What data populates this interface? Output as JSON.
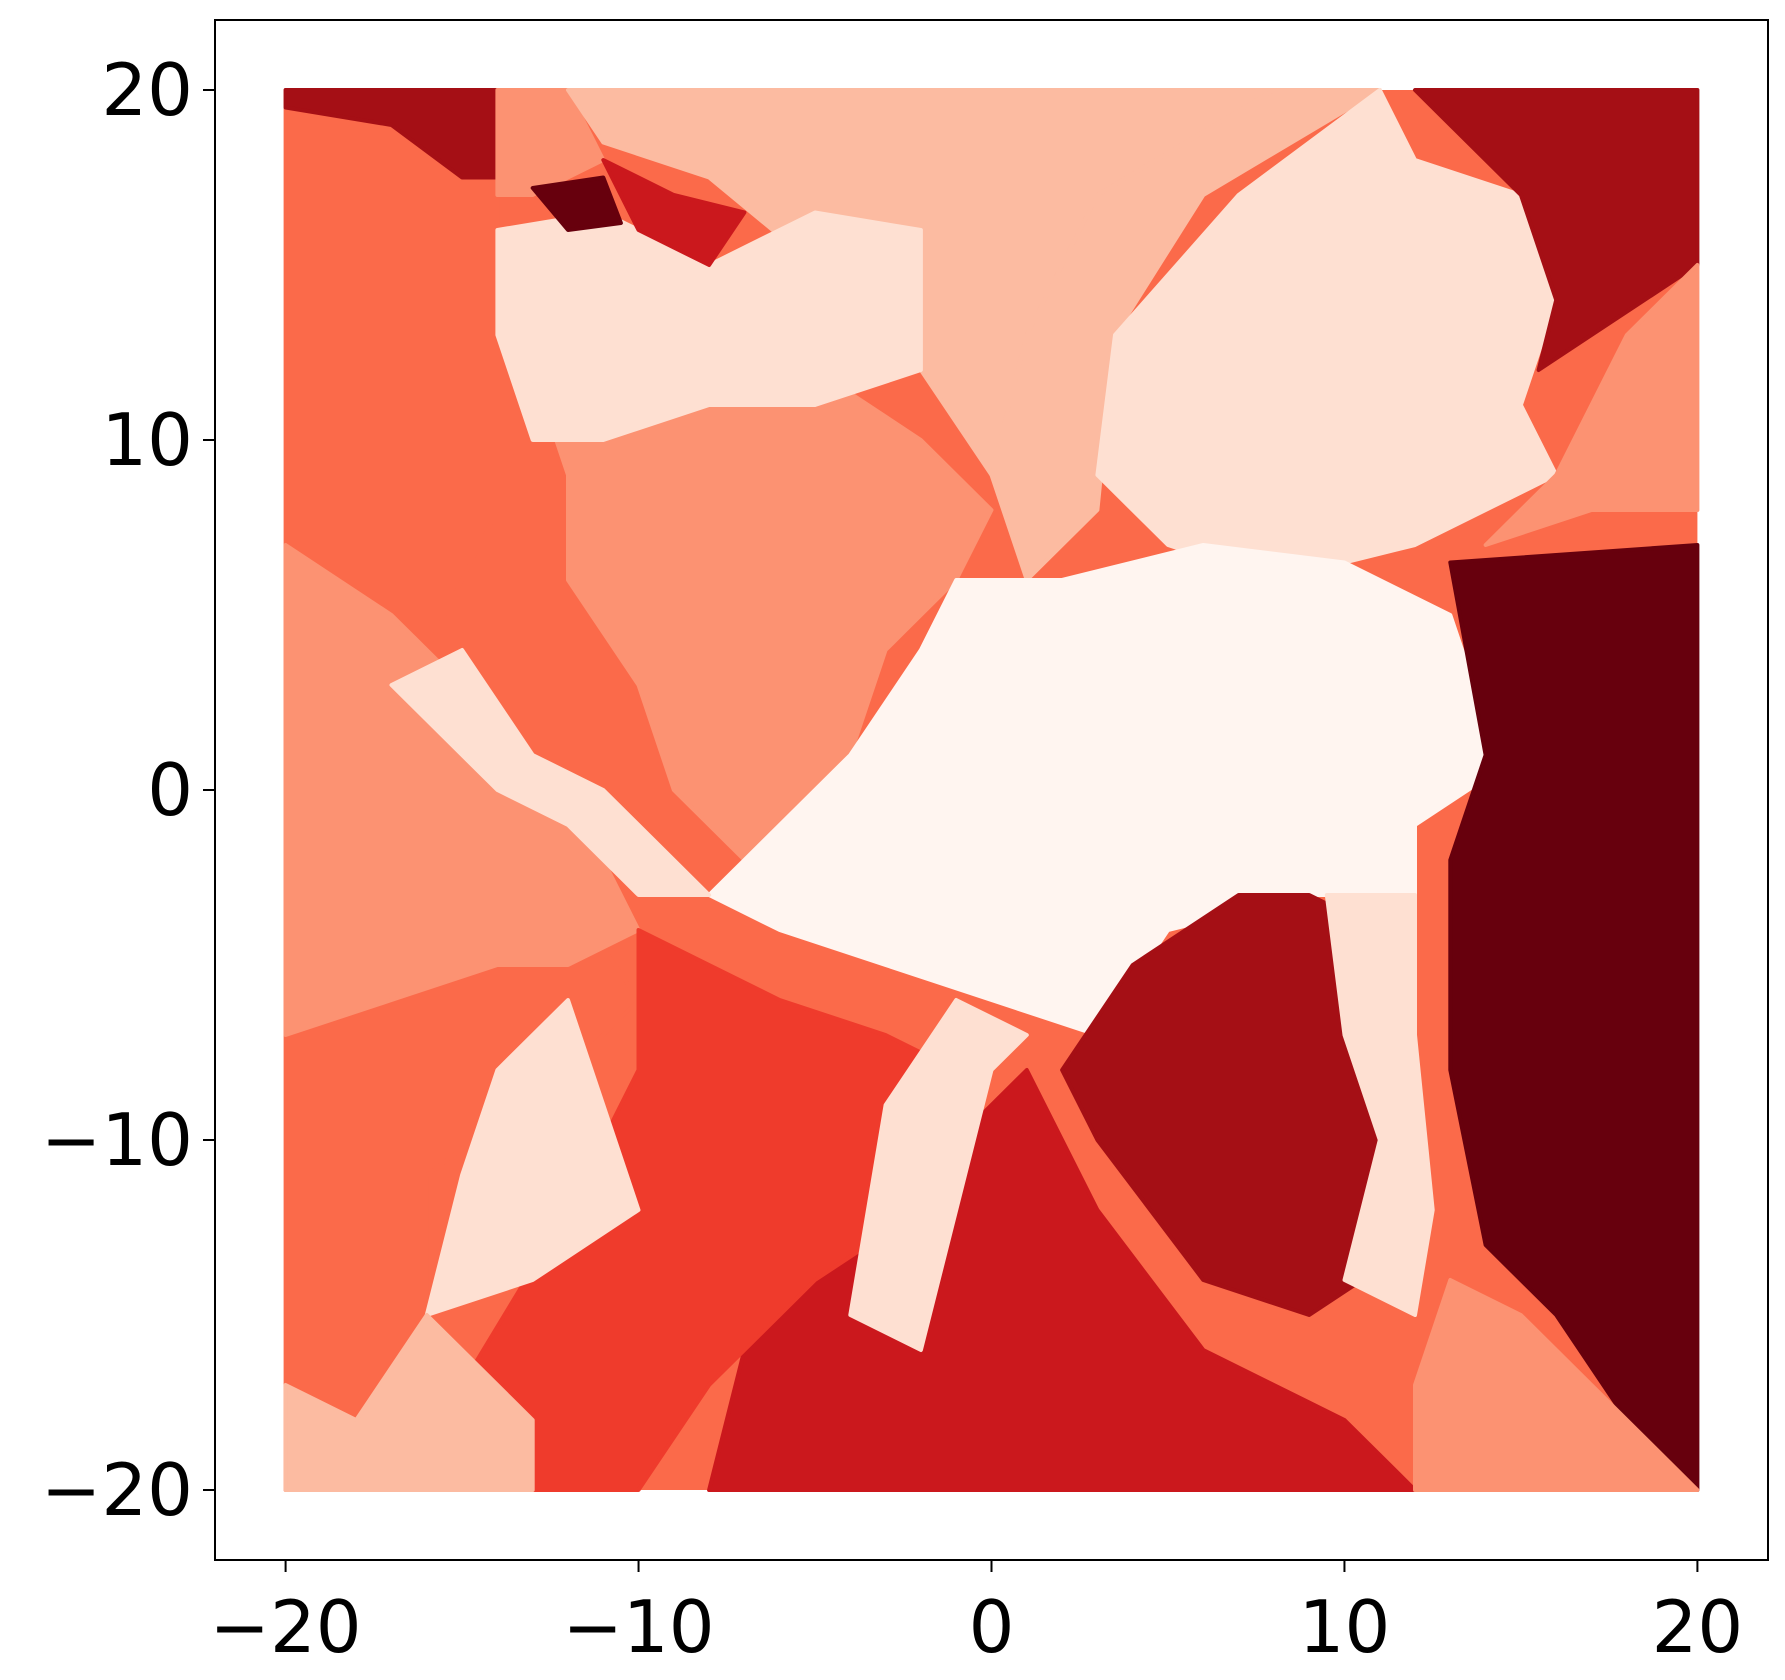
{
  "chart_data": {
    "type": "heatmap",
    "title": "",
    "xlabel": "",
    "ylabel": "",
    "xlim": [
      -22,
      22
    ],
    "ylim": [
      -22,
      22
    ],
    "grid_extent": [
      -20,
      20
    ],
    "grid": false,
    "legend": "none",
    "colormap": "Reds",
    "x_ticks": [
      -20,
      -10,
      0,
      10,
      20
    ],
    "y_ticks": [
      -20,
      -10,
      0,
      10,
      20
    ],
    "x_tick_labels": [
      "−20",
      "−10",
      "0",
      "10",
      "20"
    ],
    "y_tick_labels": [
      "−20",
      "−10",
      "0",
      "10",
      "20"
    ],
    "palette": [
      "#fff5f0",
      "#fee0d2",
      "#fcbba1",
      "#fc9272",
      "#fb6a4a",
      "#ef3b2c",
      "#cb181d",
      "#a50f15",
      "#67000d"
    ],
    "regions": [
      {
        "name": "left-orange",
        "level": 4,
        "points": [
          [
            -20,
            20
          ],
          [
            -20,
            -20
          ],
          [
            -16,
            -20
          ],
          [
            -16,
            -11
          ],
          [
            -12,
            -8
          ],
          [
            -10,
            -6
          ],
          [
            -12,
            -3
          ],
          [
            -14,
            0
          ],
          [
            -16,
            4
          ],
          [
            -14,
            8
          ],
          [
            -13,
            12
          ],
          [
            -14,
            16
          ],
          [
            -14,
            20
          ]
        ]
      },
      {
        "name": "left-lower-salmon",
        "level": 3,
        "points": [
          [
            -20,
            7
          ],
          [
            -20,
            -7
          ],
          [
            -17,
            -6
          ],
          [
            -14,
            -5
          ],
          [
            -12,
            -5
          ],
          [
            -10,
            -4
          ],
          [
            -12,
            0
          ],
          [
            -15,
            3
          ],
          [
            -17,
            5
          ]
        ]
      },
      {
        "name": "top-left-dark",
        "level": 7,
        "points": [
          [
            -20,
            20
          ],
          [
            -14,
            20
          ],
          [
            -14,
            17.5
          ],
          [
            -15,
            17.5
          ],
          [
            -17,
            19
          ],
          [
            -20,
            19.5
          ]
        ]
      },
      {
        "name": "top-salmon",
        "level": 3,
        "points": [
          [
            -14,
            20
          ],
          [
            -12,
            20
          ],
          [
            -11,
            18
          ],
          [
            -13,
            17
          ],
          [
            -14,
            17
          ]
        ]
      },
      {
        "name": "top-light-band",
        "level": 2,
        "points": [
          [
            -12,
            20
          ],
          [
            8,
            20
          ],
          [
            3,
            17
          ],
          [
            1,
            13
          ],
          [
            0,
            9
          ],
          [
            -2,
            12
          ],
          [
            -5,
            15
          ],
          [
            -8,
            17.5
          ],
          [
            -11,
            18.5
          ]
        ]
      },
      {
        "name": "top-right-band",
        "level": 2,
        "points": [
          [
            8,
            20
          ],
          [
            11,
            20
          ],
          [
            6,
            17
          ],
          [
            3.5,
            13
          ],
          [
            3,
            8
          ],
          [
            1,
            6
          ],
          [
            0,
            9
          ],
          [
            1,
            13
          ],
          [
            3,
            17
          ]
        ]
      },
      {
        "name": "upper-middle-salmon",
        "level": 3,
        "points": [
          [
            -13,
            12
          ],
          [
            -5,
            12
          ],
          [
            -2,
            10
          ],
          [
            0,
            8
          ],
          [
            -1,
            6
          ],
          [
            -3,
            4
          ],
          [
            -4,
            1
          ],
          [
            -5,
            -1
          ],
          [
            -7,
            -2
          ],
          [
            -9,
            0
          ],
          [
            -10,
            3
          ],
          [
            -12,
            6
          ],
          [
            -12,
            9
          ]
        ]
      },
      {
        "name": "upper-left-blob",
        "level": 1,
        "points": [
          [
            -14,
            16
          ],
          [
            -11,
            16.5
          ],
          [
            -8,
            15
          ],
          [
            -5,
            16.5
          ],
          [
            -2,
            16
          ],
          [
            -2,
            12
          ],
          [
            -5,
            11
          ],
          [
            -8,
            11
          ],
          [
            -11,
            10
          ],
          [
            -13,
            10
          ],
          [
            -14,
            13
          ]
        ]
      },
      {
        "name": "upper-right-blob",
        "level": 1,
        "points": [
          [
            3.5,
            13
          ],
          [
            7,
            17
          ],
          [
            11,
            20
          ],
          [
            12,
            18
          ],
          [
            15,
            17
          ],
          [
            16,
            14
          ],
          [
            15,
            11
          ],
          [
            16,
            9
          ],
          [
            12,
            7
          ],
          [
            8,
            6
          ],
          [
            5,
            7
          ],
          [
            3,
            9
          ]
        ]
      },
      {
        "name": "top-right-dark",
        "level": 7,
        "points": [
          [
            12,
            20
          ],
          [
            20,
            20
          ],
          [
            20,
            15
          ],
          [
            17,
            13
          ],
          [
            15.5,
            12
          ],
          [
            16,
            14
          ],
          [
            15,
            17
          ]
        ]
      },
      {
        "name": "right-salmon",
        "level": 3,
        "points": [
          [
            20,
            15
          ],
          [
            20,
            8
          ],
          [
            17,
            8
          ],
          [
            14,
            7
          ],
          [
            16,
            9
          ],
          [
            17,
            11
          ],
          [
            18,
            13
          ]
        ]
      },
      {
        "name": "small-dark-top",
        "level": 8,
        "points": [
          [
            -13,
            17.2
          ],
          [
            -11,
            17.5
          ],
          [
            -10.5,
            16.2
          ],
          [
            -12,
            16
          ]
        ]
      },
      {
        "name": "small-red-top",
        "level": 6,
        "points": [
          [
            -11,
            18
          ],
          [
            -9,
            17
          ],
          [
            -7,
            16.5
          ],
          [
            -8,
            15
          ],
          [
            -10,
            16
          ]
        ]
      },
      {
        "name": "center-white",
        "level": 0,
        "points": [
          [
            -1,
            6
          ],
          [
            2,
            6
          ],
          [
            6,
            7
          ],
          [
            10,
            6.5
          ],
          [
            13,
            5
          ],
          [
            14,
            2
          ],
          [
            15,
            1
          ],
          [
            12,
            -1
          ],
          [
            12,
            -3
          ],
          [
            9,
            -3
          ],
          [
            5,
            -4
          ],
          [
            3,
            -7
          ],
          [
            0,
            -6
          ],
          [
            -3,
            -5
          ],
          [
            -6,
            -4
          ],
          [
            -8,
            -3
          ],
          [
            -4,
            1
          ],
          [
            -2,
            4
          ]
        ]
      },
      {
        "name": "left-arm-white",
        "level": 1,
        "points": [
          [
            -17,
            3
          ],
          [
            -15,
            4
          ],
          [
            -13,
            1
          ],
          [
            -11,
            0
          ],
          [
            -8,
            -3
          ],
          [
            -10,
            -3
          ],
          [
            -12,
            -1
          ],
          [
            -14,
            0
          ],
          [
            -16,
            2
          ]
        ]
      },
      {
        "name": "right-lower-dark",
        "level": 8,
        "points": [
          [
            13,
            6.5
          ],
          [
            20,
            7
          ],
          [
            20,
            -20
          ],
          [
            18,
            -18
          ],
          [
            16,
            -15
          ],
          [
            14,
            -13
          ],
          [
            13,
            -8
          ],
          [
            13,
            -2
          ],
          [
            14,
            1
          ]
        ]
      },
      {
        "name": "lower-right-dark",
        "level": 7,
        "points": [
          [
            4,
            -5
          ],
          [
            7,
            -3
          ],
          [
            9,
            -3
          ],
          [
            11,
            -4
          ],
          [
            12,
            -8
          ],
          [
            12,
            -13
          ],
          [
            9,
            -15
          ],
          [
            6,
            -14
          ],
          [
            3,
            -10
          ],
          [
            2,
            -8
          ]
        ]
      },
      {
        "name": "lower-right-white",
        "level": 1,
        "points": [
          [
            9.5,
            -3
          ],
          [
            12,
            -3
          ],
          [
            12,
            -7
          ],
          [
            12.5,
            -12
          ],
          [
            12,
            -15
          ],
          [
            10,
            -14
          ],
          [
            11,
            -10
          ],
          [
            10,
            -7
          ]
        ]
      },
      {
        "name": "lower-center-red",
        "level": 6,
        "points": [
          [
            -8,
            -20
          ],
          [
            12,
            -20
          ],
          [
            10,
            -18
          ],
          [
            6,
            -16
          ],
          [
            3,
            -12
          ],
          [
            1,
            -8
          ],
          [
            -1,
            -10
          ],
          [
            -2,
            -12
          ],
          [
            -4,
            -13
          ],
          [
            -6,
            -14
          ],
          [
            -7,
            -16
          ]
        ]
      },
      {
        "name": "lower-left-red",
        "level": 5,
        "points": [
          [
            -10,
            -4
          ],
          [
            -8,
            -5
          ],
          [
            -6,
            -6
          ],
          [
            -3,
            -7
          ],
          [
            -1,
            -8
          ],
          [
            -2,
            -12
          ],
          [
            -5,
            -14
          ],
          [
            -8,
            -17
          ],
          [
            -10,
            -20
          ],
          [
            -14,
            -20
          ],
          [
            -15,
            -17
          ],
          [
            -12,
            -12
          ],
          [
            -10,
            -8
          ]
        ]
      },
      {
        "name": "lower-left-white-arm",
        "level": 1,
        "points": [
          [
            -16,
            -15
          ],
          [
            -13,
            -14
          ],
          [
            -10,
            -12
          ],
          [
            -11,
            -9
          ],
          [
            -12,
            -6
          ],
          [
            -14,
            -8
          ],
          [
            -15,
            -11
          ]
        ]
      },
      {
        "name": "lower-white-arm",
        "level": 1,
        "points": [
          [
            -4,
            -15
          ],
          [
            -2,
            -16
          ],
          [
            -1,
            -12
          ],
          [
            0,
            -8
          ],
          [
            1,
            -7
          ],
          [
            -1,
            -6
          ],
          [
            -3,
            -9
          ]
        ]
      },
      {
        "name": "bottom-left-light",
        "level": 2,
        "points": [
          [
            -20,
            -20
          ],
          [
            -13,
            -20
          ],
          [
            -13,
            -18
          ],
          [
            -16,
            -15
          ],
          [
            -18,
            -18
          ],
          [
            -20,
            -17
          ]
        ]
      },
      {
        "name": "bottom-right-salmon",
        "level": 3,
        "points": [
          [
            12,
            -20
          ],
          [
            20,
            -20
          ],
          [
            17,
            -17
          ],
          [
            15,
            -15
          ],
          [
            13,
            -14
          ],
          [
            12,
            -17
          ]
        ]
      }
    ],
    "annotations": []
  }
}
